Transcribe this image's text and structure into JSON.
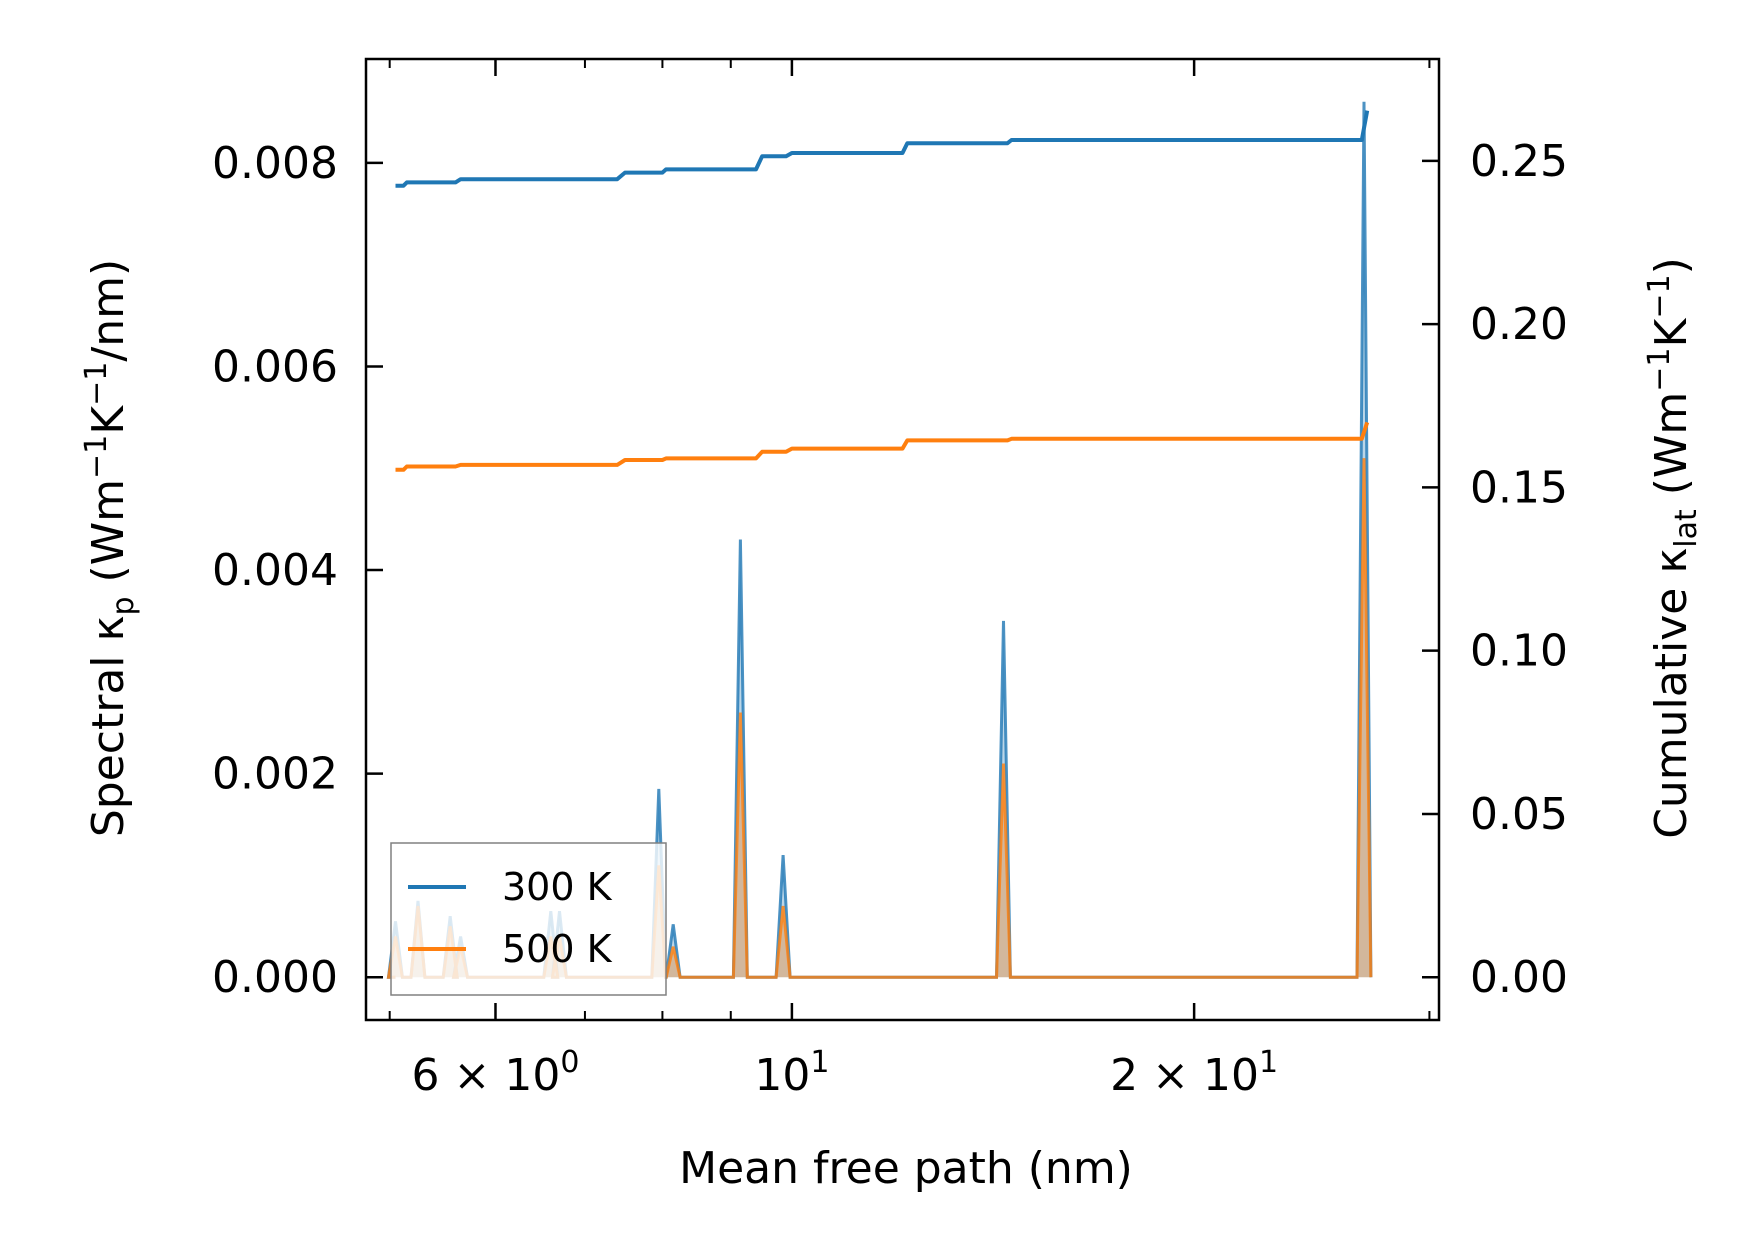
{
  "chart_data": {
    "type": "line",
    "title": "",
    "xlabel": "Mean free path (nm)",
    "xscale": "log",
    "xlim": [
      4.8,
      30.5
    ],
    "x_ticks": [
      {
        "value": 6,
        "label_main": "6 × 10",
        "label_exp": "0"
      },
      {
        "value": 10,
        "label_main": "10",
        "label_exp": "1"
      },
      {
        "value": 20,
        "label_main": "2 × 10",
        "label_exp": "1"
      }
    ],
    "x_minor_ticks": [
      5,
      7,
      8,
      9,
      30
    ],
    "y_left": {
      "label_main": "Spectral κ",
      "label_sub": "p",
      "label_units_a": "(Wm",
      "label_exp_a": "−1",
      "label_units_b": "K",
      "label_exp_b": "−1",
      "label_units_c": "/nm)",
      "ylim": [
        -0.00042,
        0.00902
      ],
      "ticks": [
        "0.000",
        "0.002",
        "0.004",
        "0.006",
        "0.008"
      ],
      "tick_values": [
        0,
        0.002,
        0.004,
        0.006,
        0.008
      ]
    },
    "y_right": {
      "label_main": "Cumulative κ",
      "label_sub": "lat",
      "label_units_a": "(Wm",
      "label_exp_a": "−1",
      "label_units_b": "K",
      "label_exp_b": "−1",
      "label_units_c": ")",
      "ylim": [
        -0.0131,
        0.2812
      ],
      "ticks": [
        "0.00",
        "0.05",
        "0.10",
        "0.15",
        "0.20",
        "0.25"
      ],
      "tick_values": [
        0,
        0.05,
        0.1,
        0.15,
        0.2,
        0.25
      ]
    },
    "series": [
      {
        "name": "300 K",
        "color": "#1f77b4",
        "cumulative": [
          [
            5.05,
            0.2424
          ],
          [
            5.12,
            0.2424
          ],
          [
            5.15,
            0.2434
          ],
          [
            5.6,
            0.2434
          ],
          [
            5.65,
            0.2444
          ],
          [
            7.4,
            0.2444
          ],
          [
            7.5,
            0.2464
          ],
          [
            8.0,
            0.2464
          ],
          [
            8.05,
            0.2474
          ],
          [
            9.4,
            0.2474
          ],
          [
            9.5,
            0.2514
          ],
          [
            9.9,
            0.2514
          ],
          [
            10.0,
            0.2524
          ],
          [
            12.1,
            0.2524
          ],
          [
            12.2,
            0.2554
          ],
          [
            14.5,
            0.2554
          ],
          [
            14.6,
            0.2564
          ],
          [
            23.5,
            0.2564
          ],
          [
            26.7,
            0.2564
          ],
          [
            26.95,
            0.2654
          ]
        ],
        "spectral_peaks": [
          [
            5.05,
            0.00055
          ],
          [
            5.25,
            0.00075
          ],
          [
            5.55,
            0.0006
          ],
          [
            5.65,
            0.0004
          ],
          [
            6.6,
            0.00065
          ],
          [
            6.7,
            0.00065
          ],
          [
            7.95,
            0.00185
          ],
          [
            8.15,
            0.00052
          ],
          [
            9.15,
            0.0043
          ],
          [
            9.85,
            0.0012
          ],
          [
            14.4,
            0.0035
          ],
          [
            26.8,
            0.0086
          ]
        ]
      },
      {
        "name": "500 K",
        "color": "#ff7f0e",
        "cumulative": [
          [
            5.05,
            0.1554
          ],
          [
            5.12,
            0.1554
          ],
          [
            5.15,
            0.1564
          ],
          [
            5.6,
            0.1564
          ],
          [
            5.65,
            0.1569
          ],
          [
            7.4,
            0.1569
          ],
          [
            7.5,
            0.1584
          ],
          [
            8.0,
            0.1584
          ],
          [
            8.05,
            0.1589
          ],
          [
            9.4,
            0.1589
          ],
          [
            9.5,
            0.1609
          ],
          [
            9.9,
            0.1609
          ],
          [
            10.0,
            0.1619
          ],
          [
            12.1,
            0.1619
          ],
          [
            12.2,
            0.1644
          ],
          [
            14.5,
            0.1644
          ],
          [
            14.6,
            0.1649
          ],
          [
            23.5,
            0.1649
          ],
          [
            26.7,
            0.1649
          ],
          [
            26.95,
            0.1699
          ]
        ],
        "spectral_peaks": [
          [
            5.05,
            0.0004
          ],
          [
            5.25,
            0.0007
          ],
          [
            5.55,
            0.0005
          ],
          [
            5.65,
            0.0003
          ],
          [
            6.6,
            0.0004
          ],
          [
            6.7,
            0.0004
          ],
          [
            7.95,
            0.0011
          ],
          [
            8.15,
            0.0003
          ],
          [
            9.15,
            0.0026
          ],
          [
            9.85,
            0.0007
          ],
          [
            14.4,
            0.0021
          ],
          [
            26.8,
            0.0051
          ]
        ]
      }
    ],
    "legend": {
      "placement": "lower-left",
      "entries": [
        "300 K",
        "500 K"
      ]
    }
  }
}
